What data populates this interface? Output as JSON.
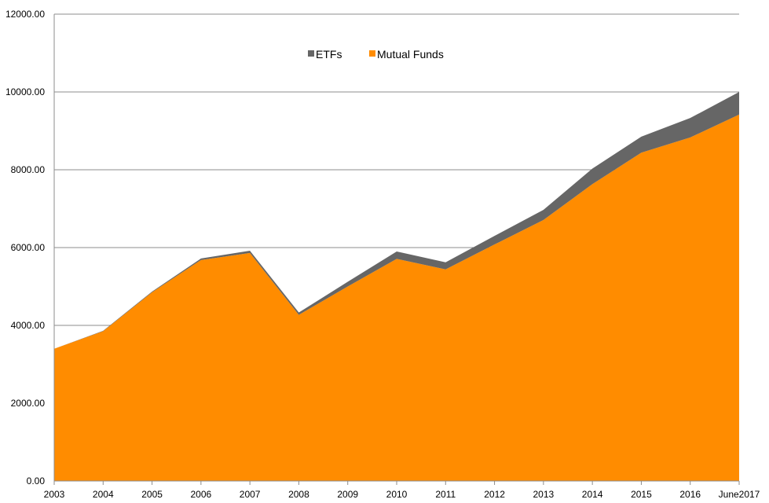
{
  "chart_data": {
    "type": "area",
    "stacked": true,
    "title": "",
    "xlabel": "",
    "ylabel": "",
    "categories": [
      "2003",
      "2004",
      "2005",
      "2006",
      "2007",
      "2008",
      "2009",
      "2010",
      "2011",
      "2012",
      "2013",
      "2014",
      "2015",
      "2016",
      "June2017"
    ],
    "series": [
      {
        "name": "Mutual Funds",
        "color": "#ff8c00",
        "values": [
          3400,
          3850,
          4850,
          5680,
          5860,
          4270,
          5000,
          5710,
          5440,
          6080,
          6710,
          7630,
          8440,
          8830,
          9420
        ]
      },
      {
        "name": "ETFs",
        "color": "#666666",
        "values": [
          0,
          10,
          20,
          40,
          60,
          60,
          120,
          190,
          180,
          220,
          260,
          400,
          410,
          500,
          580
        ]
      }
    ],
    "ylim": [
      0,
      12000
    ],
    "yticks": [
      "0.00",
      "2000.00",
      "4000.00",
      "6000.00",
      "8000.00",
      "10000.00",
      "12000.00"
    ],
    "grid": true,
    "legend": {
      "placement": "top-center",
      "order": [
        "ETFs",
        "Mutual Funds"
      ]
    }
  }
}
